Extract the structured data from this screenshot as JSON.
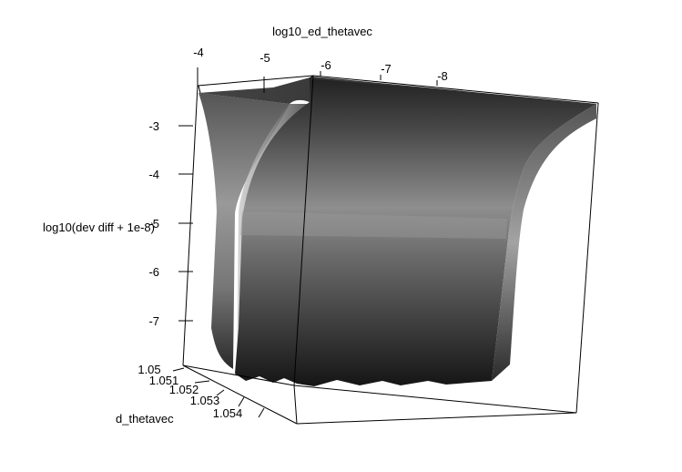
{
  "chart_data": {
    "type": "surface3d",
    "title": "",
    "xlabel": "log10_ed_thetavec",
    "ylabel": "d_thetavec",
    "zlabel": "log10(dev diff + 1e-8)",
    "x_ticks": [
      "-4",
      "-5",
      "-6",
      "-7",
      "-8"
    ],
    "y_ticks": [
      "1.05",
      "1.051",
      "1.052",
      "1.053",
      "1.054"
    ],
    "z_ticks": [
      "-3",
      "-4",
      "-5",
      "-6",
      "-7"
    ],
    "x_range": [
      -8.5,
      -4
    ],
    "y_range": [
      1.05,
      1.0545
    ],
    "z_range": [
      -8,
      -2.6
    ],
    "shading": "grayscale",
    "box": true
  }
}
